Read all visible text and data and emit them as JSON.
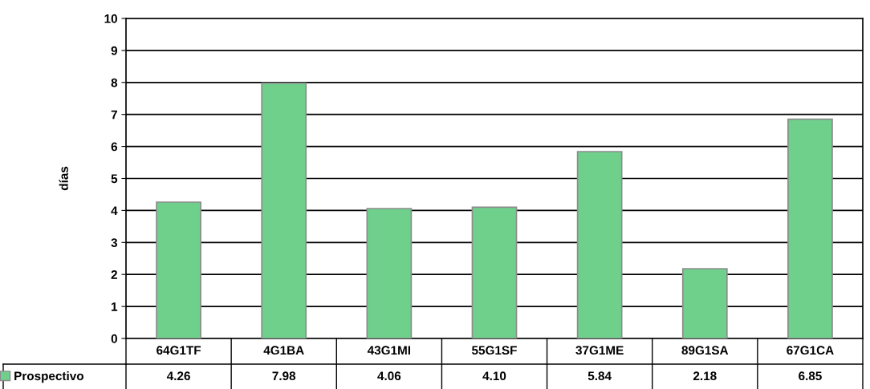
{
  "chart_data": {
    "type": "bar",
    "ylabel": "días",
    "categories": [
      "64G1TF",
      "4G1BA",
      "43G1MI",
      "55G1SF",
      "37G1ME",
      "89G1SA",
      "67G1CA"
    ],
    "series": [
      {
        "name": "Prospectivo",
        "color": "#6fd08c",
        "values": [
          4.26,
          7.98,
          4.06,
          4.1,
          5.84,
          2.18,
          6.85
        ],
        "value_labels": [
          "4.26",
          "7.98",
          "4.06",
          "4.10",
          "5.84",
          "2.18",
          "6.85"
        ]
      }
    ],
    "ylim": [
      0,
      10
    ],
    "yticks": [
      0,
      1,
      2,
      3,
      4,
      5,
      6,
      7,
      8,
      9,
      10
    ],
    "grid": "y",
    "legend": "bottom left"
  }
}
